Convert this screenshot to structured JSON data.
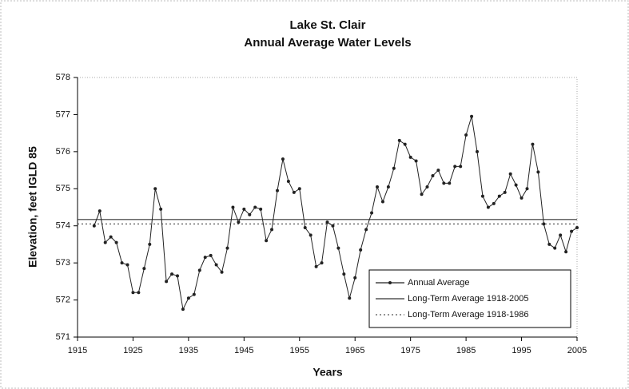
{
  "chart_data": {
    "type": "line",
    "title": "Lake St. Clair",
    "subtitle": "Annual Average Water Levels",
    "x_label": "Years",
    "y_label": "Elevation, feet IGLD 85",
    "xlim": [
      1915,
      2005
    ],
    "xticks": [
      1915,
      1925,
      1935,
      1945,
      1955,
      1965,
      1975,
      1985,
      1995,
      2005
    ],
    "ylim": [
      571,
      578
    ],
    "yticks": [
      571,
      572,
      573,
      574,
      575,
      576,
      577,
      578
    ],
    "legend": "lower right",
    "series": [
      {
        "name": "Annual Average",
        "color": "#222222",
        "x": [
          1918,
          1919,
          1920,
          1921,
          1922,
          1923,
          1924,
          1925,
          1926,
          1927,
          1928,
          1929,
          1930,
          1931,
          1932,
          1933,
          1934,
          1935,
          1936,
          1937,
          1938,
          1939,
          1940,
          1941,
          1942,
          1943,
          1944,
          1945,
          1946,
          1947,
          1948,
          1949,
          1950,
          1951,
          1952,
          1953,
          1954,
          1955,
          1956,
          1957,
          1958,
          1959,
          1960,
          1961,
          1962,
          1963,
          1964,
          1965,
          1966,
          1967,
          1968,
          1969,
          1970,
          1971,
          1972,
          1973,
          1974,
          1975,
          1976,
          1977,
          1978,
          1979,
          1980,
          1981,
          1982,
          1983,
          1984,
          1985,
          1986,
          1987,
          1988,
          1989,
          1990,
          1991,
          1992,
          1993,
          1994,
          1995,
          1996,
          1997,
          1998,
          1999,
          2000,
          2001,
          2002,
          2003,
          2004,
          2005
        ],
        "values": [
          574.0,
          574.4,
          573.55,
          573.7,
          573.55,
          573.0,
          572.95,
          572.2,
          572.2,
          572.85,
          573.5,
          575.0,
          574.45,
          572.5,
          572.7,
          572.65,
          571.75,
          572.05,
          572.15,
          572.8,
          573.15,
          573.2,
          572.95,
          572.75,
          573.4,
          574.5,
          574.1,
          574.45,
          574.3,
          574.5,
          574.45,
          573.6,
          573.9,
          574.95,
          575.8,
          575.2,
          574.9,
          575.0,
          573.95,
          573.75,
          572.9,
          573.0,
          574.1,
          574.0,
          573.4,
          572.7,
          572.05,
          572.6,
          573.35,
          573.9,
          574.35,
          575.05,
          574.65,
          575.05,
          575.55,
          576.3,
          576.2,
          575.85,
          575.75,
          574.85,
          575.05,
          575.35,
          575.5,
          575.15,
          575.15,
          575.6,
          575.6,
          576.45,
          576.95,
          576.0,
          574.8,
          574.5,
          574.6,
          574.8,
          574.9,
          575.4,
          575.1,
          574.75,
          575.0,
          576.2,
          575.45,
          574.05,
          573.5,
          573.4,
          573.75,
          573.3,
          573.85,
          573.95
        ]
      }
    ],
    "reference_lines": [
      {
        "name": "Long-Term Average 1918-2005",
        "value": 574.17,
        "style": "solid",
        "color": "#333333"
      },
      {
        "name": "Long-Term Average 1918-1986",
        "value": 574.05,
        "style": "dotted",
        "color": "#555555"
      }
    ]
  }
}
